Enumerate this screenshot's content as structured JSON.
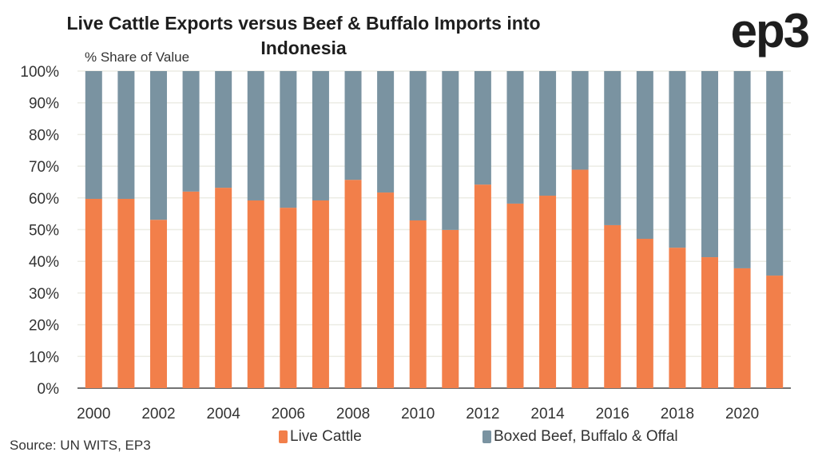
{
  "logo": "ep3",
  "source": "Source: UN WITS, EP3",
  "chart_data": {
    "type": "bar",
    "stacked": true,
    "title": "Live Cattle Exports versus Beef & Buffalo Imports into Indonesia",
    "title_lines": [
      "Live Cattle Exports versus Beef & Buffalo Imports into",
      "Indonesia"
    ],
    "ylabel": "% Share of Value",
    "xlabel": "",
    "ylim": [
      0,
      100
    ],
    "yticks": [
      "0%",
      "10%",
      "20%",
      "30%",
      "40%",
      "50%",
      "60%",
      "70%",
      "80%",
      "90%",
      "100%"
    ],
    "xtick_labels": [
      "2000",
      "2002",
      "2004",
      "2006",
      "2008",
      "2010",
      "2012",
      "2014",
      "2016",
      "2018",
      "2020"
    ],
    "categories": [
      "2000",
      "2001",
      "2002",
      "2003",
      "2004",
      "2005",
      "2006",
      "2007",
      "2008",
      "2009",
      "2010",
      "2011",
      "2012",
      "2013",
      "2014",
      "2015",
      "2016",
      "2017",
      "2018",
      "2019",
      "2020",
      "2021"
    ],
    "grid": true,
    "legend_position": "bottom",
    "series": [
      {
        "name": "Live Cattle",
        "color": "#f27f4a",
        "values": [
          59.7,
          59.7,
          53.1,
          62.0,
          63.2,
          59.2,
          56.9,
          59.2,
          65.7,
          61.7,
          52.9,
          49.9,
          64.2,
          58.2,
          60.7,
          68.9,
          51.4,
          47.1,
          44.3,
          41.3,
          37.8,
          35.5
        ]
      },
      {
        "name": "Boxed Beef, Buffalo & Offal",
        "color": "#7a93a1",
        "values": [
          40.3,
          40.3,
          46.9,
          38.0,
          36.8,
          40.8,
          43.1,
          40.8,
          34.3,
          38.3,
          47.1,
          50.1,
          35.8,
          41.8,
          39.3,
          31.1,
          48.6,
          52.9,
          55.7,
          58.7,
          62.2,
          64.5
        ]
      }
    ]
  }
}
